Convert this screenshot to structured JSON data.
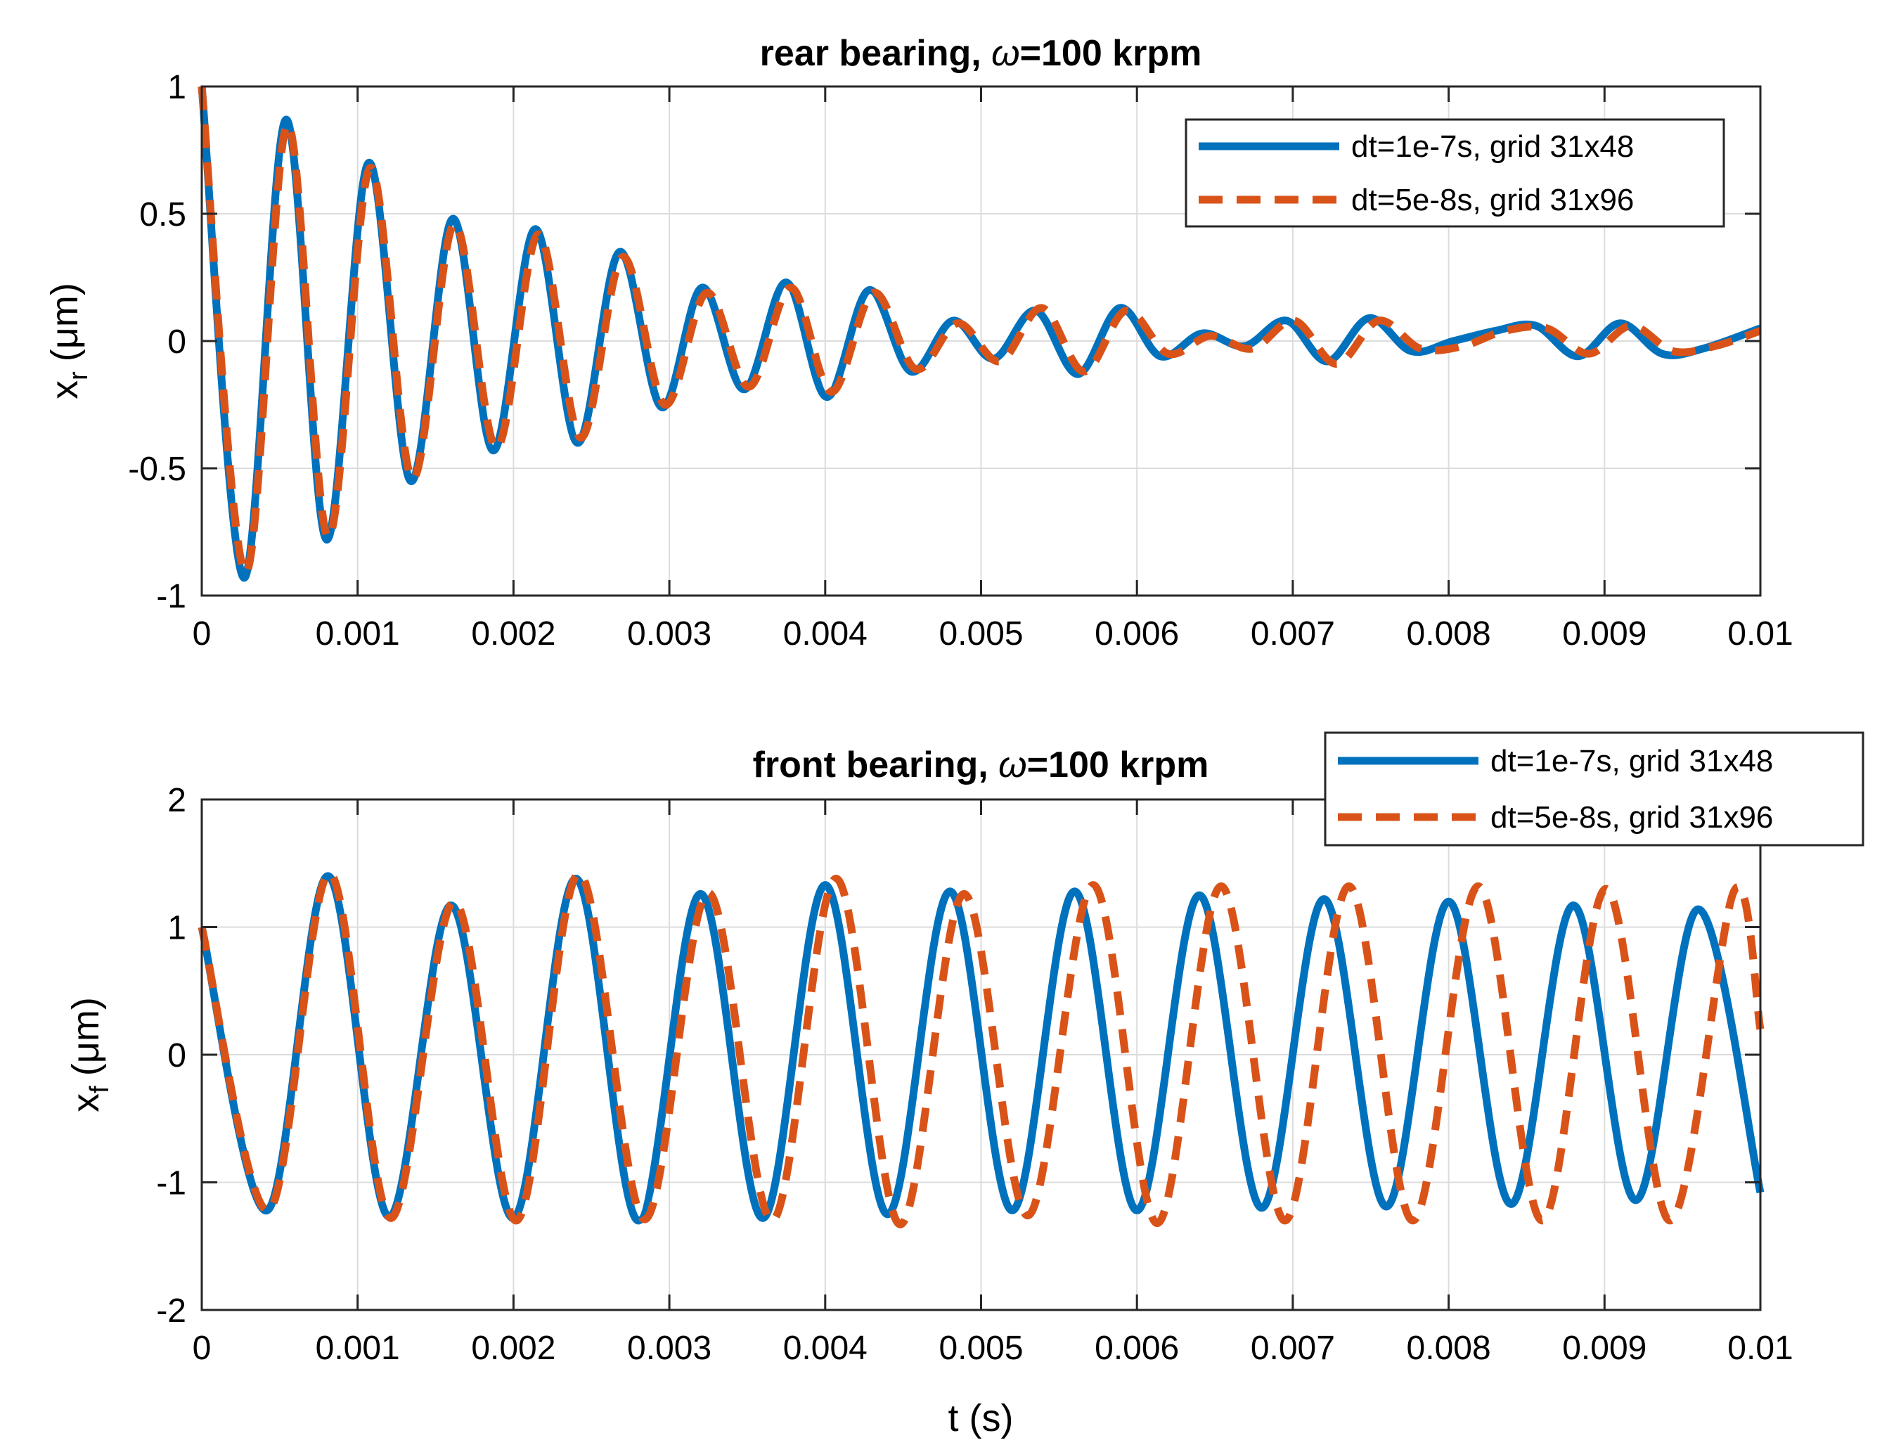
{
  "chart_data": [
    {
      "type": "line",
      "title": "rear bearing, ω=100 krpm",
      "title_prefix": "rear bearing, ",
      "title_symbol": "ω",
      "title_suffix": "=100 krpm",
      "xlabel": "",
      "ylabel_main": "x",
      "ylabel_sub": "r",
      "ylabel_unit": "(μm)",
      "xlim": [
        0,
        0.01
      ],
      "ylim": [
        -1,
        1
      ],
      "xticks": [
        0,
        0.001,
        0.002,
        0.003,
        0.004,
        0.005,
        0.006,
        0.007,
        0.008,
        0.009,
        0.01
      ],
      "xtick_labels": [
        "0",
        "0.001",
        "0.002",
        "0.003",
        "0.004",
        "0.005",
        "0.006",
        "0.007",
        "0.008",
        "0.009",
        "0.01"
      ],
      "yticks": [
        -1,
        -0.5,
        0,
        0.5,
        1
      ],
      "ytick_labels": [
        "-1",
        "-0.5",
        "0",
        "0.5",
        "1"
      ],
      "grid": true,
      "legend_position": "top-right inside",
      "series": [
        {
          "name": "dt=1e-7s, grid 31x48",
          "style": "solid",
          "color": "#0072BD",
          "x": [
            0,
            0.00027,
            0.00054,
            0.0008,
            0.00107,
            0.00134,
            0.00161,
            0.00187,
            0.00214,
            0.00241,
            0.00268,
            0.00295,
            0.00321,
            0.00348,
            0.00375,
            0.00401,
            0.00428,
            0.00455,
            0.00482,
            0.00508,
            0.00535,
            0.00562,
            0.00589,
            0.00615,
            0.00642,
            0.00669,
            0.00696,
            0.00722,
            0.00749,
            0.00776,
            0.00803,
            0.0083,
            0.00856,
            0.00883,
            0.0091,
            0.00937,
            0.00963,
            0.01
          ],
          "y": [
            1.0,
            -0.93,
            0.87,
            -0.78,
            0.7,
            -0.55,
            0.48,
            -0.43,
            0.44,
            -0.4,
            0.35,
            -0.26,
            0.21,
            -0.19,
            0.23,
            -0.22,
            0.2,
            -0.12,
            0.08,
            -0.07,
            0.12,
            -0.13,
            0.13,
            -0.06,
            0.03,
            -0.02,
            0.08,
            -0.08,
            0.09,
            -0.04,
            0.0,
            0.04,
            0.06,
            -0.06,
            0.07,
            -0.05,
            -0.03,
            0.05
          ]
        },
        {
          "name": "dt=5e-8s, grid 31x96",
          "style": "dashed",
          "color": "#D95319",
          "x": [
            0,
            0.00028,
            0.00055,
            0.00081,
            0.00108,
            0.00135,
            0.00162,
            0.00189,
            0.00216,
            0.00243,
            0.0027,
            0.00297,
            0.00324,
            0.00351,
            0.00378,
            0.00404,
            0.00431,
            0.00458,
            0.00485,
            0.00512,
            0.00539,
            0.00566,
            0.00593,
            0.0062,
            0.00647,
            0.00674,
            0.00701,
            0.00728,
            0.00755,
            0.00782,
            0.00809,
            0.00836,
            0.00863,
            0.0089,
            0.00917,
            0.00944,
            0.00971,
            0.01
          ],
          "y": [
            1.0,
            -0.91,
            0.85,
            -0.77,
            0.68,
            -0.54,
            0.46,
            -0.42,
            0.42,
            -0.38,
            0.33,
            -0.25,
            0.19,
            -0.18,
            0.21,
            -0.2,
            0.19,
            -0.11,
            0.07,
            -0.08,
            0.13,
            -0.12,
            0.12,
            -0.05,
            0.02,
            -0.03,
            0.08,
            -0.09,
            0.08,
            -0.03,
            -0.02,
            0.04,
            0.05,
            -0.05,
            0.06,
            -0.04,
            -0.02,
            0.04
          ]
        }
      ]
    },
    {
      "type": "line",
      "title": "front bearing, ω=100 krpm",
      "title_prefix": "front bearing, ",
      "title_symbol": "ω",
      "title_suffix": "=100 krpm",
      "xlabel": "t (s)",
      "ylabel_main": "x",
      "ylabel_sub": "f",
      "ylabel_unit": "(μm)",
      "xlim": [
        0,
        0.01
      ],
      "ylim": [
        -2,
        2
      ],
      "xticks": [
        0,
        0.001,
        0.002,
        0.003,
        0.004,
        0.005,
        0.006,
        0.007,
        0.008,
        0.009,
        0.01
      ],
      "xtick_labels": [
        "0",
        "0.001",
        "0.002",
        "0.003",
        "0.004",
        "0.005",
        "0.006",
        "0.007",
        "0.008",
        "0.009",
        "0.01"
      ],
      "yticks": [
        -2,
        -1,
        0,
        1,
        2
      ],
      "ytick_labels": [
        "-2",
        "-1",
        "0",
        "1",
        "2"
      ],
      "grid": true,
      "legend_position": "top-right, overlapping title",
      "series": [
        {
          "name": "dt=1e-7s, grid 31x48",
          "style": "solid",
          "color": "#0072BD",
          "x": [
            0,
            0.00042,
            0.00081,
            0.0012,
            0.0016,
            0.002,
            0.0024,
            0.0028,
            0.0032,
            0.0036,
            0.004,
            0.0044,
            0.0048,
            0.0052,
            0.0056,
            0.006,
            0.0064,
            0.0068,
            0.0072,
            0.0076,
            0.008,
            0.0084,
            0.0088,
            0.0092,
            0.0096,
            0.01
          ],
          "y": [
            1.0,
            -1.22,
            1.4,
            -1.27,
            1.17,
            -1.28,
            1.38,
            -1.3,
            1.26,
            -1.28,
            1.33,
            -1.25,
            1.28,
            -1.22,
            1.28,
            -1.22,
            1.25,
            -1.2,
            1.22,
            -1.19,
            1.2,
            -1.17,
            1.17,
            -1.14,
            1.14,
            -1.08
          ]
        },
        {
          "name": "dt=5e-8s, grid 31x96",
          "style": "dashed",
          "color": "#D95319",
          "x": [
            0,
            0.00043,
            0.00082,
            0.00121,
            0.00162,
            0.00202,
            0.00242,
            0.00284,
            0.00325,
            0.00366,
            0.00407,
            0.00448,
            0.00489,
            0.0053,
            0.00572,
            0.00613,
            0.00654,
            0.00695,
            0.00736,
            0.00777,
            0.00819,
            0.0086,
            0.00901,
            0.00942,
            0.00983,
            0.01
          ],
          "y": [
            1.0,
            -1.22,
            1.42,
            -1.28,
            1.2,
            -1.3,
            1.42,
            -1.29,
            1.27,
            -1.3,
            1.38,
            -1.33,
            1.26,
            -1.26,
            1.33,
            -1.32,
            1.32,
            -1.3,
            1.32,
            -1.3,
            1.32,
            -1.3,
            1.3,
            -1.3,
            1.28,
            0.2
          ]
        }
      ]
    }
  ]
}
